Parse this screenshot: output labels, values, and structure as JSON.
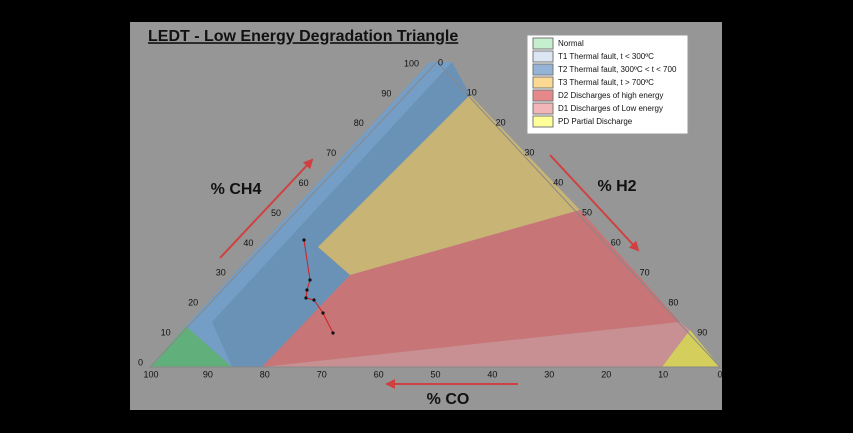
{
  "title": "LEDT - Low Energy Degradation Triangle",
  "legend": [
    {
      "label": "Normal",
      "color": "#c6efce"
    },
    {
      "label": "T1  Thermal fault, t < 300ºC",
      "color": "#dce6f2"
    },
    {
      "label": "T2  Thermal fault, 300ºC < t < 700",
      "color": "#95b3d7"
    },
    {
      "label": "T3  Thermal fault, t > 700ºC",
      "color": "#fcd992"
    },
    {
      "label": "D2  Discharges of high energy",
      "color": "#e6898b"
    },
    {
      "label": "D1  Discharges of Low energy",
      "color": "#f2b6b8"
    },
    {
      "label": "PD  Partial Discharge",
      "color": "#ffff99"
    }
  ],
  "axes": {
    "ch4": {
      "label": "% CH4",
      "ticks": [
        0,
        10,
        20,
        30,
        40,
        50,
        60,
        70,
        80,
        90,
        100
      ]
    },
    "h2": {
      "label": "% H2",
      "ticks": [
        0,
        10,
        20,
        30,
        40,
        50,
        60,
        70,
        80,
        90
      ]
    },
    "co": {
      "label": "% CO",
      "ticks": [
        100,
        90,
        80,
        70,
        60,
        50,
        40,
        30,
        20,
        10,
        0
      ]
    }
  }
}
